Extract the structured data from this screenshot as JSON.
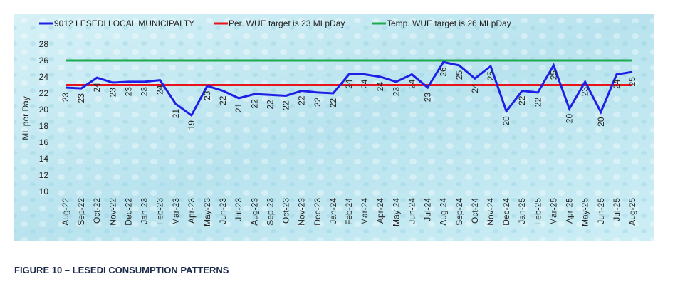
{
  "chart_data": {
    "type": "line",
    "caption": "FIGURE 10 – LESEDI CONSUMPTION PATTERNS",
    "y_label": "ML per Day",
    "categories": [
      "Aug-22",
      "Sep-22",
      "Oct-22",
      "Nov-22",
      "Dec-22",
      "Jan-23",
      "Feb-23",
      "Mar-23",
      "Apr-23",
      "May-23",
      "Jun-23",
      "Jul-23",
      "Aug-23",
      "Sep-23",
      "Oct-23",
      "Nov-23",
      "Dec-23",
      "Jan-24",
      "Feb-24",
      "Mar-24",
      "Apr-24",
      "May-24",
      "Jun-24",
      "Jul-24",
      "Aug-24",
      "Sep-24",
      "Oct-24",
      "Nov-24",
      "Dec-24",
      "Jan-25",
      "Feb-25",
      "Mar-25",
      "Apr-25",
      "May-25",
      "Jun-25",
      "Jul-25",
      "Aug-25"
    ],
    "series": [
      {
        "name": "9012 LESEDI LOCAL MUNICIPALTY",
        "color": "#1f1fe6",
        "values": [
          22.7,
          22.6,
          23.9,
          23.3,
          23.4,
          23.4,
          23.6,
          20.7,
          19.3,
          22.9,
          22.3,
          21.4,
          21.9,
          21.8,
          21.7,
          22.3,
          22.1,
          22.0,
          24.3,
          24.3,
          24.0,
          23.4,
          24.3,
          22.7,
          25.8,
          25.4,
          23.8,
          25.3,
          19.8,
          22.3,
          22.1,
          25.4,
          20.1,
          23.4,
          19.7,
          24.3,
          24.6
        ],
        "value_labels": [
          "23",
          "23",
          "24",
          "23",
          "23",
          "23",
          "24",
          "21",
          "19",
          "23",
          "22",
          "21",
          "22",
          "22",
          "22",
          "22",
          "22",
          "22",
          "24",
          "24",
          "24",
          "23",
          "24",
          "23",
          "26",
          "25",
          "24",
          "25",
          "20",
          "22",
          "22",
          "25",
          "20",
          "23",
          "20",
          "24",
          "25"
        ]
      },
      {
        "name": "Per. WUE target is 23 MLpDay",
        "color": "#e8141b",
        "values": [
          23,
          23,
          23,
          23,
          23,
          23,
          23,
          23,
          23,
          23,
          23,
          23,
          23,
          23,
          23,
          23,
          23,
          23,
          23,
          23,
          23,
          23,
          23,
          23,
          23,
          23,
          23,
          23,
          23,
          23,
          23,
          23,
          23,
          23,
          23,
          23,
          23
        ]
      },
      {
        "name": "Temp. WUE target is 26 MLpDay",
        "color": "#1faa50",
        "values": [
          26,
          26,
          26,
          26,
          26,
          26,
          26,
          26,
          26,
          26,
          26,
          26,
          26,
          26,
          26,
          26,
          26,
          26,
          26,
          26,
          26,
          26,
          26,
          26,
          26,
          26,
          26,
          26,
          26,
          26,
          26,
          26,
          26,
          26,
          26,
          26,
          26
        ]
      }
    ],
    "ylim": [
      10,
      28
    ],
    "yticks": [
      10,
      12,
      14,
      16,
      18,
      20,
      22,
      24,
      26,
      28
    ],
    "grid": false
  }
}
